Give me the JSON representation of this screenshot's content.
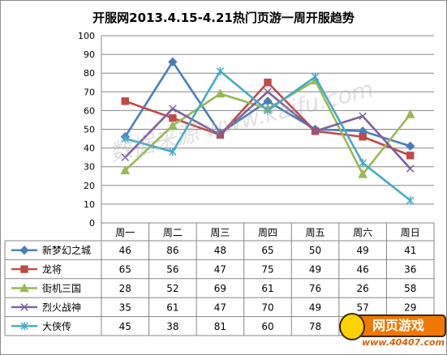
{
  "chart_data": {
    "type": "line",
    "title": "开服网2013.4.15-4.21热门页游一周开服趋势",
    "categories": [
      "周一",
      "周二",
      "周三",
      "周四",
      "周五",
      "周六",
      "周日"
    ],
    "ylim": [
      0,
      100
    ],
    "yticks": [
      0,
      10,
      20,
      30,
      40,
      50,
      60,
      70,
      80,
      90,
      100
    ],
    "grid": true,
    "legend": "data-table-left",
    "series": [
      {
        "name": "新梦幻之城",
        "color": "#4a7ebb",
        "marker": "diamond",
        "values": [
          46,
          86,
          48,
          65,
          50,
          49,
          41
        ]
      },
      {
        "name": "龙将",
        "color": "#be4b48",
        "marker": "square",
        "values": [
          65,
          56,
          47,
          75,
          49,
          46,
          36
        ]
      },
      {
        "name": "街机三国",
        "color": "#98b954",
        "marker": "triangle",
        "values": [
          28,
          52,
          69,
          61,
          76,
          26,
          58
        ]
      },
      {
        "name": "烈火战神",
        "color": "#7d60a0",
        "marker": "x",
        "values": [
          35,
          61,
          47,
          70,
          49,
          57,
          29
        ]
      },
      {
        "name": "大侠传",
        "color": "#46aac5",
        "marker": "star",
        "values": [
          45,
          38,
          81,
          60,
          78,
          32,
          12
        ]
      }
    ]
  },
  "watermark": "数据来源 www.kaifu.com",
  "logo": {
    "badge": "网页游戏",
    "url": "www.40407.com"
  }
}
